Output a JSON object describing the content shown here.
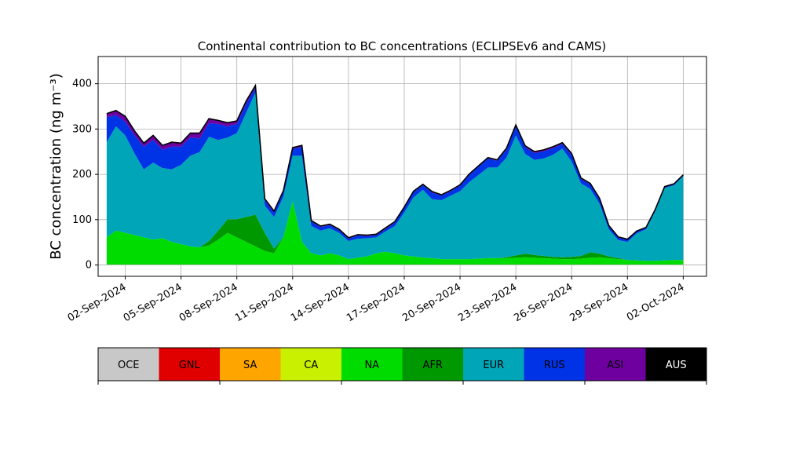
{
  "chart_data": {
    "type": "area",
    "stacked": true,
    "title": "Continental contribution to BC concentrations (ECLIPSEv6 and CAMS)",
    "ylabel": "BC concentration (ng m⁻³)",
    "xlabel": "",
    "ylim": [
      -25,
      460
    ],
    "x_range": [
      "2024-08-31T13:00",
      "2024-10-03T06:00"
    ],
    "y_ticks": [
      0,
      100,
      200,
      300,
      400
    ],
    "x_ticks": [
      "02-Sep-2024",
      "05-Sep-2024",
      "08-Sep-2024",
      "11-Sep-2024",
      "14-Sep-2024",
      "17-Sep-2024",
      "20-Sep-2024",
      "23-Sep-2024",
      "26-Sep-2024",
      "29-Sep-2024",
      "02-Oct-2024"
    ],
    "grid": true,
    "total_line_color": "#000000",
    "x": [
      "2024-09-01T00:00",
      "2024-09-01T12:00",
      "2024-09-02T00:00",
      "2024-09-02T12:00",
      "2024-09-03T00:00",
      "2024-09-03T12:00",
      "2024-09-04T00:00",
      "2024-09-04T12:00",
      "2024-09-05T00:00",
      "2024-09-05T12:00",
      "2024-09-06T00:00",
      "2024-09-06T12:00",
      "2024-09-07T00:00",
      "2024-09-07T12:00",
      "2024-09-08T00:00",
      "2024-09-08T12:00",
      "2024-09-09T00:00",
      "2024-09-09T12:00",
      "2024-09-10T00:00",
      "2024-09-10T12:00",
      "2024-09-11T00:00",
      "2024-09-11T12:00",
      "2024-09-12T00:00",
      "2024-09-12T12:00",
      "2024-09-13T00:00",
      "2024-09-13T12:00",
      "2024-09-14T00:00",
      "2024-09-14T12:00",
      "2024-09-15T00:00",
      "2024-09-15T12:00",
      "2024-09-16T00:00",
      "2024-09-16T12:00",
      "2024-09-17T00:00",
      "2024-09-17T12:00",
      "2024-09-18T00:00",
      "2024-09-18T12:00",
      "2024-09-19T00:00",
      "2024-09-19T12:00",
      "2024-09-20T00:00",
      "2024-09-20T12:00",
      "2024-09-21T00:00",
      "2024-09-21T12:00",
      "2024-09-22T00:00",
      "2024-09-22T12:00",
      "2024-09-23T00:00",
      "2024-09-23T12:00",
      "2024-09-24T00:00",
      "2024-09-24T12:00",
      "2024-09-25T00:00",
      "2024-09-25T12:00",
      "2024-09-26T00:00",
      "2024-09-26T12:00",
      "2024-09-27T00:00",
      "2024-09-27T12:00",
      "2024-09-28T00:00",
      "2024-09-28T12:00",
      "2024-09-29T00:00",
      "2024-09-29T12:00",
      "2024-09-30T00:00",
      "2024-09-30T12:00",
      "2024-10-01T00:00",
      "2024-10-01T12:00",
      "2024-10-02T00:00"
    ],
    "series": [
      {
        "name": "OCE",
        "color": "#c8c8c8",
        "values": [
          1,
          1,
          1,
          1,
          1,
          1,
          1,
          1,
          1,
          1,
          1,
          1,
          1,
          1,
          1,
          1,
          1,
          1,
          1,
          1,
          1,
          1,
          1,
          1,
          1,
          1,
          1,
          1,
          1,
          1,
          1,
          1,
          1,
          1,
          1,
          1,
          1,
          1,
          1,
          1,
          1,
          1,
          1,
          1,
          1,
          1,
          1,
          1,
          1,
          1,
          1,
          1,
          1,
          1,
          1,
          1,
          1,
          1,
          1,
          1,
          1,
          1,
          1
        ]
      },
      {
        "name": "GNL",
        "color": "#e00000",
        "values": [
          0,
          0,
          0,
          0,
          0,
          0,
          0,
          0,
          0,
          0,
          0,
          0,
          0,
          0,
          0,
          0,
          0,
          0,
          0,
          0,
          0,
          0,
          0,
          0,
          0,
          0,
          0,
          0,
          0,
          0,
          0,
          0,
          0,
          0,
          0,
          0,
          0,
          0,
          0,
          0,
          0,
          0,
          0,
          0,
          0,
          0,
          0,
          0,
          0,
          0,
          0,
          0,
          0,
          0,
          0,
          0,
          0,
          0,
          0,
          0,
          0,
          0,
          0
        ]
      },
      {
        "name": "SA",
        "color": "#ffa500",
        "values": [
          0,
          0,
          0,
          0,
          0,
          0,
          0,
          0,
          0,
          0,
          0,
          0,
          0,
          0,
          0,
          0,
          0,
          0,
          0,
          0,
          0,
          0,
          0,
          0,
          0,
          0,
          0,
          0,
          0,
          0,
          0,
          0,
          0,
          0,
          0,
          0,
          0,
          0,
          0,
          0,
          0,
          0,
          0,
          0,
          0,
          0,
          0,
          0,
          0,
          0,
          0,
          0,
          0,
          0,
          0,
          0,
          0,
          0,
          0,
          0,
          0,
          0,
          0
        ]
      },
      {
        "name": "CA",
        "color": "#c8f000",
        "values": [
          0,
          0,
          0,
          0,
          0,
          0,
          0,
          0,
          0,
          0,
          0,
          0,
          0,
          0,
          0,
          0,
          0,
          0,
          0,
          0,
          0,
          0,
          0,
          0,
          0,
          0,
          0,
          0,
          0,
          0,
          0,
          0,
          0,
          0,
          0,
          0,
          0,
          0,
          0,
          0,
          0,
          0,
          0,
          0,
          0,
          0,
          0,
          0,
          0,
          0,
          0,
          0,
          0,
          0,
          0,
          0,
          0,
          0,
          0,
          0,
          0,
          0,
          0
        ]
      },
      {
        "name": "NA",
        "color": "#00dc00",
        "values": [
          60,
          75,
          70,
          65,
          60,
          55,
          58,
          50,
          45,
          40,
          38,
          42,
          55,
          70,
          60,
          50,
          40,
          30,
          25,
          60,
          140,
          50,
          25,
          20,
          25,
          20,
          12,
          15,
          18,
          25,
          28,
          25,
          20,
          18,
          15,
          14,
          12,
          12,
          12,
          12,
          13,
          14,
          14,
          14,
          15,
          16,
          15,
          14,
          13,
          12,
          12,
          13,
          15,
          16,
          14,
          12,
          10,
          9,
          8,
          8,
          9,
          10,
          10
        ]
      },
      {
        "name": "AFR",
        "color": "#009800",
        "values": [
          0,
          0,
          0,
          0,
          0,
          0,
          0,
          0,
          0,
          0,
          0,
          10,
          20,
          30,
          40,
          55,
          70,
          40,
          10,
          0,
          0,
          0,
          0,
          0,
          0,
          0,
          0,
          0,
          0,
          0,
          0,
          0,
          0,
          0,
          0,
          0,
          0,
          0,
          0,
          0,
          0,
          0,
          0,
          2,
          5,
          8,
          6,
          5,
          4,
          4,
          5,
          6,
          12,
          8,
          4,
          2,
          0,
          0,
          0,
          0,
          0,
          0,
          0
        ]
      },
      {
        "name": "EUR",
        "color": "#00a5b8",
        "values": [
          210,
          230,
          215,
          180,
          150,
          170,
          155,
          160,
          175,
          200,
          210,
          230,
          200,
          180,
          190,
          230,
          270,
          60,
          70,
          90,
          100,
          190,
          60,
          55,
          55,
          50,
          40,
          42,
          40,
          35,
          45,
          60,
          95,
          130,
          150,
          130,
          130,
          140,
          150,
          170,
          185,
          200,
          200,
          220,
          265,
          220,
          210,
          215,
          225,
          240,
          210,
          160,
          140,
          110,
          60,
          40,
          40,
          60,
          70,
          110,
          160,
          165,
          185
        ]
      },
      {
        "name": "RUS",
        "color": "#0032e6",
        "values": [
          55,
          25,
          30,
          40,
          50,
          50,
          40,
          50,
          40,
          40,
          30,
          30,
          35,
          25,
          20,
          20,
          10,
          12,
          10,
          10,
          15,
          20,
          10,
          8,
          7,
          6,
          5,
          7,
          5,
          5,
          6,
          8,
          10,
          12,
          10,
          15,
          10,
          10,
          12,
          16,
          18,
          20,
          15,
          18,
          20,
          15,
          15,
          16,
          15,
          10,
          15,
          10,
          10,
          10,
          6,
          5,
          5,
          4,
          3,
          3,
          2,
          2,
          2
        ]
      },
      {
        "name": "ASI",
        "color": "#6e00a0",
        "values": [
          8,
          10,
          12,
          10,
          8,
          10,
          10,
          10,
          8,
          10,
          12,
          10,
          8,
          8,
          7,
          6,
          5,
          3,
          3,
          3,
          3,
          3,
          2,
          2,
          2,
          2,
          2,
          2,
          2,
          2,
          2,
          2,
          2,
          2,
          2,
          2,
          2,
          2,
          2,
          2,
          2,
          2,
          2,
          3,
          3,
          3,
          3,
          3,
          3,
          3,
          3,
          2,
          2,
          2,
          2,
          2,
          1,
          1,
          1,
          1,
          1,
          1,
          1
        ]
      },
      {
        "name": "AUS",
        "color": "#000000",
        "values": [
          0,
          0,
          0,
          0,
          0,
          0,
          0,
          0,
          0,
          0,
          0,
          0,
          0,
          0,
          0,
          0,
          0,
          0,
          0,
          0,
          0,
          0,
          0,
          0,
          0,
          0,
          0,
          0,
          0,
          0,
          0,
          0,
          0,
          0,
          0,
          0,
          0,
          0,
          0,
          0,
          0,
          0,
          0,
          0,
          0,
          0,
          0,
          0,
          0,
          0,
          0,
          0,
          0,
          0,
          0,
          0,
          0,
          0,
          0,
          0,
          0,
          0,
          0
        ]
      }
    ],
    "legend_position": "bottom-colorbar",
    "legend_labels": [
      "OCE",
      "GNL",
      "SA",
      "CA",
      "NA",
      "AFR",
      "EUR",
      "RUS",
      "ASI",
      "AUS"
    ]
  }
}
